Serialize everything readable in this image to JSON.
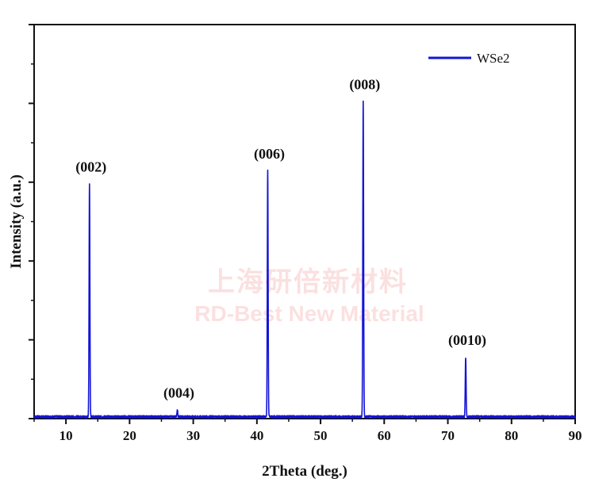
{
  "chart_data": {
    "type": "line",
    "xlabel": "2Theta (deg.)",
    "ylabel": "Intensity (a.u.)",
    "xlim": [
      5,
      90
    ],
    "ylim": [
      0,
      1.05
    ],
    "x_ticks": [
      10,
      20,
      30,
      40,
      50,
      60,
      70,
      80,
      90
    ],
    "y_tick_labels_shown": false,
    "grid": false,
    "legend": {
      "position": "top-right",
      "entries": [
        "WSe2"
      ]
    },
    "series": [
      {
        "name": "WSe2",
        "color": "#1414d8",
        "baseline": 0.005,
        "peaks": [
          {
            "x": 13.7,
            "y": 0.62,
            "label": "(002)"
          },
          {
            "x": 27.5,
            "y": 0.018,
            "label": "(004)"
          },
          {
            "x": 41.7,
            "y": 0.655,
            "label": "(006)"
          },
          {
            "x": 56.7,
            "y": 0.84,
            "label": "(008)"
          },
          {
            "x": 72.8,
            "y": 0.158,
            "label": "(0010)"
          }
        ]
      }
    ],
    "watermark": {
      "line1": "上海研倍新材料",
      "line2": "RD-Best New Material"
    }
  }
}
